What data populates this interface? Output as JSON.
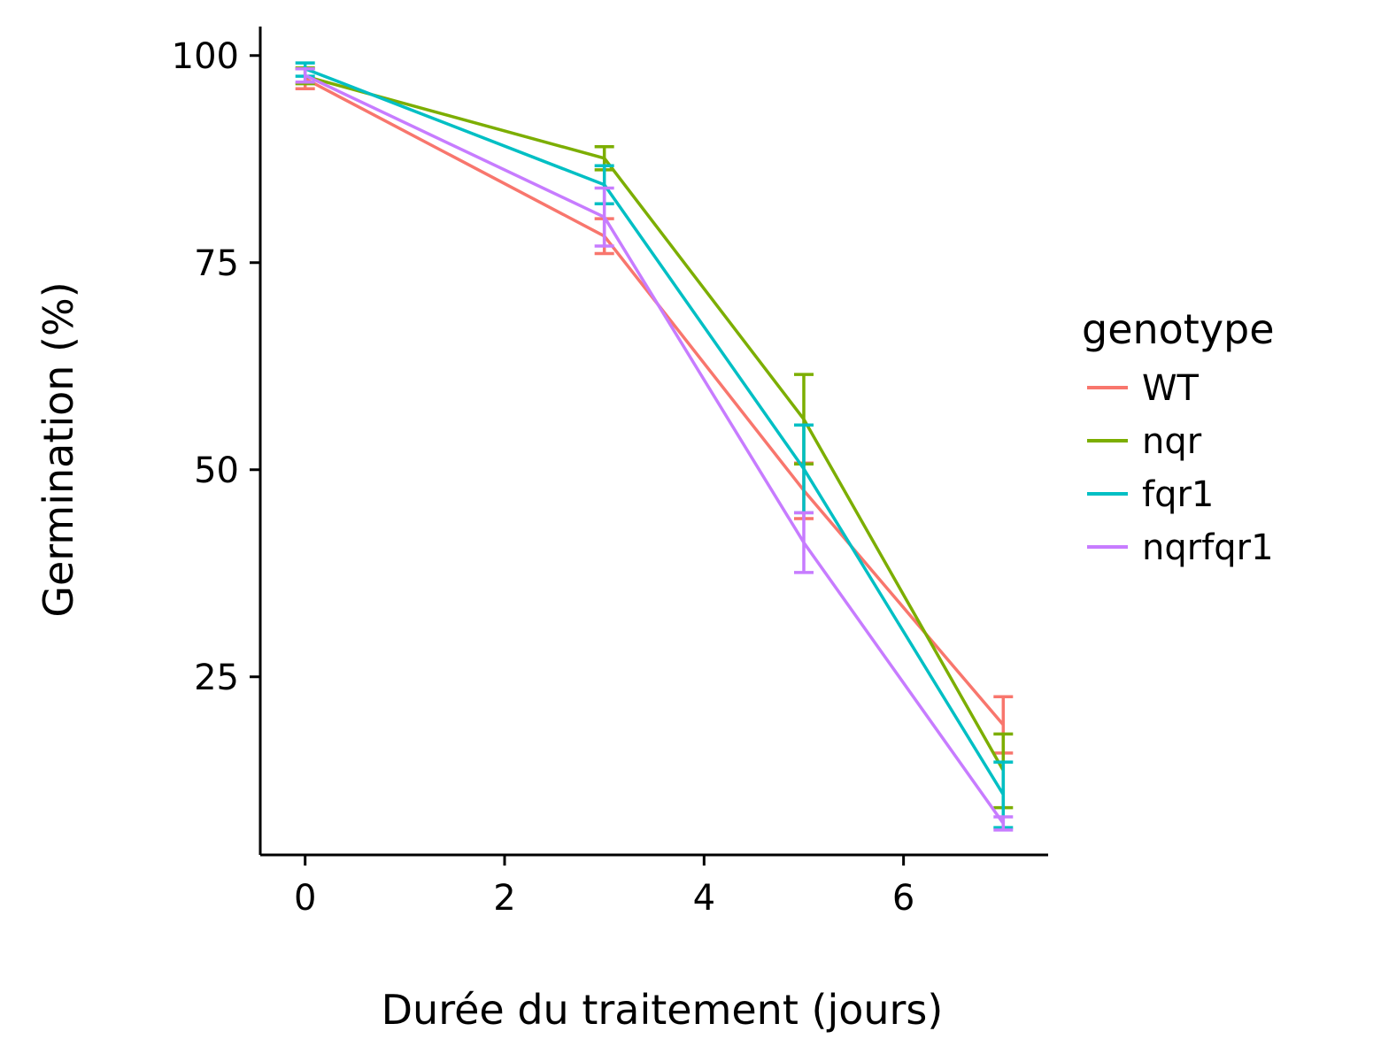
{
  "chart_data": {
    "type": "line",
    "title": "",
    "xlabel": "Durée du traitement (jours)",
    "ylabel": "Germination (%)",
    "x": [
      0,
      3,
      5,
      7
    ],
    "xlim": [
      -0.45,
      7.45
    ],
    "ylim": [
      3.5,
      103.5
    ],
    "xticks": [
      0,
      2,
      4,
      6
    ],
    "yticks": [
      25,
      50,
      75,
      100
    ],
    "grid": false,
    "legend": {
      "title": "genotype",
      "position": "right"
    },
    "series": [
      {
        "name": "WT",
        "color": "#F8766D",
        "values": [
          97.2,
          78.2,
          47.5,
          19.2
        ],
        "err_low": [
          96.0,
          76.1,
          44.1,
          15.8
        ],
        "err_high": [
          98.4,
          80.3,
          50.8,
          22.6
        ]
      },
      {
        "name": "nqr",
        "color": "#7CAE00",
        "values": [
          97.5,
          87.6,
          56.1,
          13.7
        ],
        "err_low": [
          96.6,
          86.2,
          50.7,
          9.2
        ],
        "err_high": [
          98.5,
          89.0,
          61.5,
          18.1
        ]
      },
      {
        "name": "fqr1",
        "color": "#00BFC4",
        "values": [
          98.4,
          84.4,
          50.1,
          10.8
        ],
        "err_low": [
          97.5,
          82.1,
          44.8,
          6.8
        ],
        "err_high": [
          99.1,
          86.7,
          55.4,
          14.7
        ]
      },
      {
        "name": "nqrfqr1",
        "color": "#C77CFF",
        "values": [
          97.6,
          80.5,
          41.2,
          7.3
        ],
        "err_low": [
          96.8,
          77.0,
          37.6,
          6.5
        ],
        "err_high": [
          98.4,
          84.0,
          44.8,
          8.1
        ]
      }
    ]
  }
}
